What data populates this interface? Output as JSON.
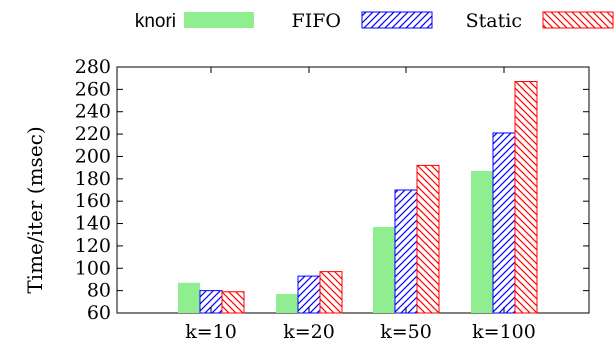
{
  "chart_data": {
    "type": "bar",
    "title": "",
    "xlabel": "",
    "ylabel": "Time/iter (msec)",
    "ylim": [
      60,
      280
    ],
    "yticks": [
      60,
      80,
      100,
      120,
      140,
      160,
      180,
      200,
      220,
      240,
      260,
      280
    ],
    "grid": false,
    "legend_position": "top",
    "categories": [
      "k=10",
      "k=20",
      "k=50",
      "k=100"
    ],
    "series": [
      {
        "name": "knori",
        "values": [
          87,
          77,
          137,
          187
        ],
        "color": "#90ee90",
        "pattern": "solid"
      },
      {
        "name": "FIFO",
        "values": [
          80,
          93,
          170,
          221
        ],
        "color": "#0000ff",
        "pattern": "hatch-forward"
      },
      {
        "name": "Static",
        "values": [
          79,
          97,
          192,
          267
        ],
        "color": "#ff0000",
        "pattern": "hatch-back"
      }
    ]
  }
}
